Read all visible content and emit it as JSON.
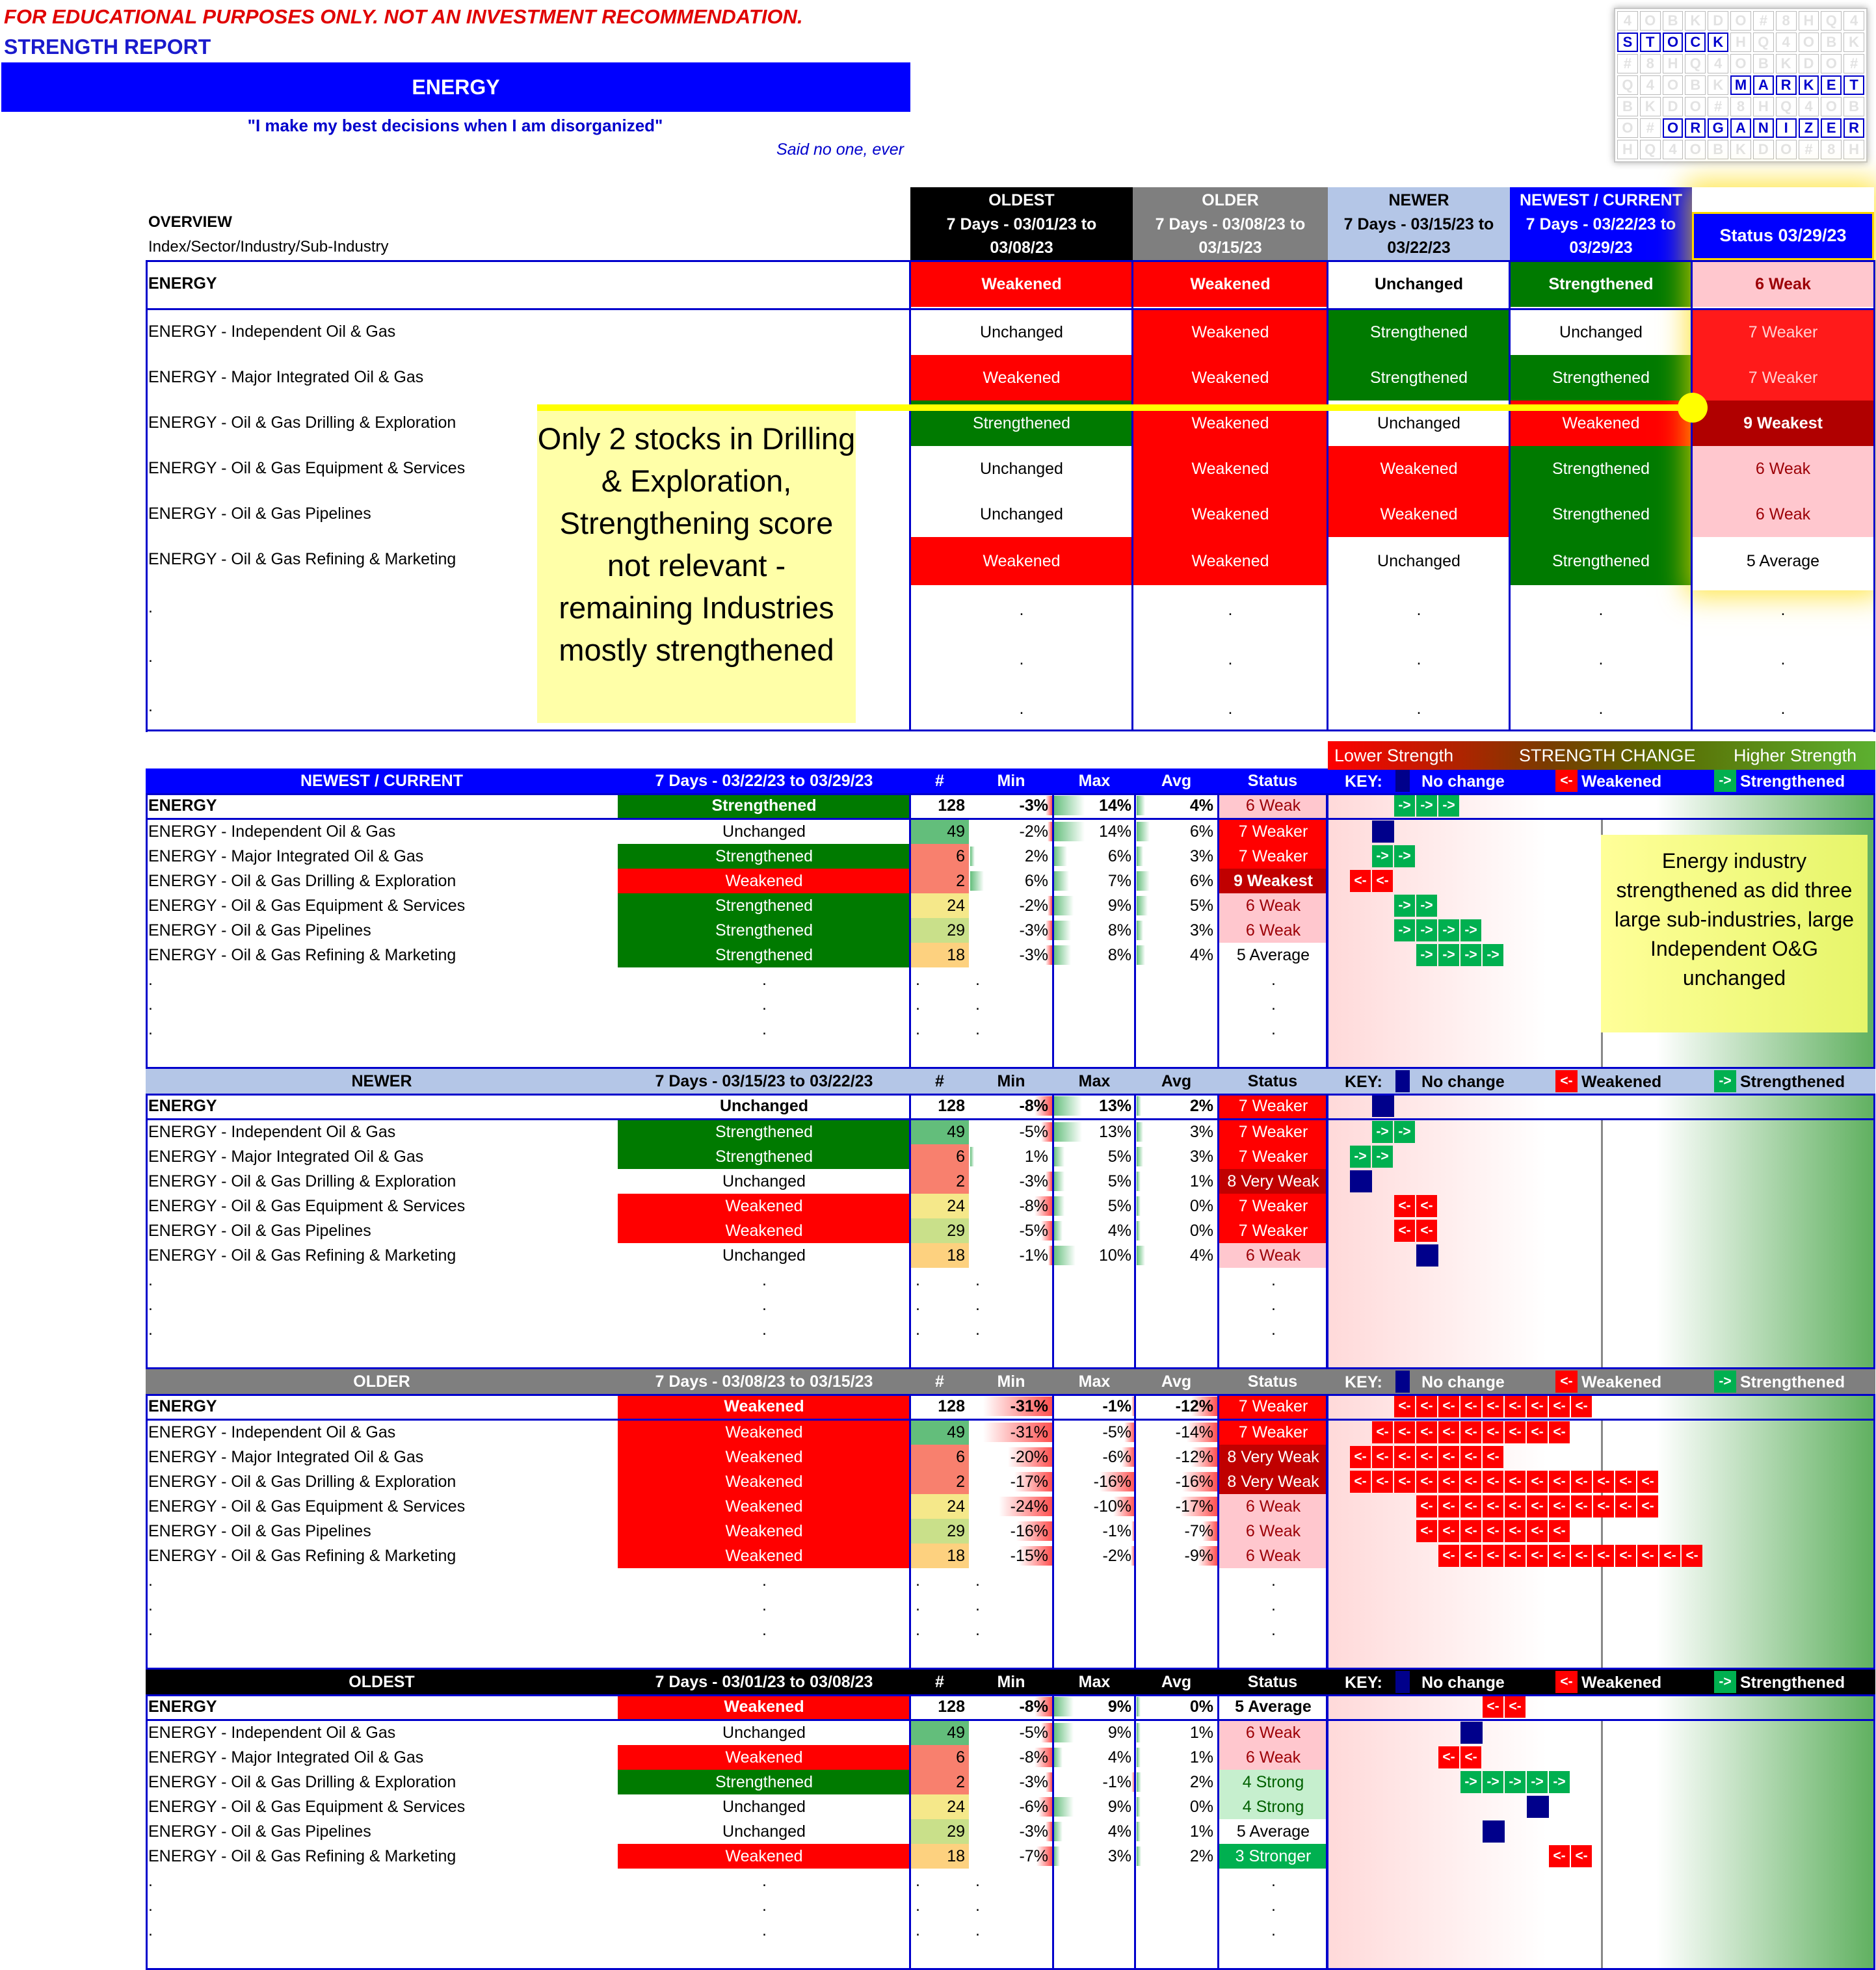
{
  "header": {
    "disclaimer": "FOR EDUCATIONAL PURPOSES ONLY. NOT AN INVESTMENT RECOMMENDATION.",
    "report": "STRENGTH REPORT",
    "sector": "ENERGY",
    "quote": "\"I make my best decisions when I am disorganized\"",
    "said": "Said no one, ever"
  },
  "logo": {
    "row1": [
      "S",
      "T",
      "O",
      "C",
      "K"
    ],
    "row2": [
      "M",
      "A",
      "R",
      "K",
      "E",
      "T"
    ],
    "row3": [
      "O",
      "R",
      "G",
      "A",
      "N",
      "I",
      "Z",
      "E",
      "R"
    ]
  },
  "overview": {
    "title": "OVERVIEW",
    "subtitle": "Index/Sector/Industry/Sub-Industry",
    "periods": [
      {
        "name": "OLDEST",
        "range": "7 Days - 03/01/23 to 03/08/23"
      },
      {
        "name": "OLDER",
        "range": "7 Days - 03/08/23 to 03/15/23"
      },
      {
        "name": "NEWER",
        "range": "7 Days - 03/15/23 to 03/22/23"
      },
      {
        "name": "NEWEST / CURRENT",
        "range": "7 Days - 03/22/23 to 03/29/23"
      }
    ],
    "status_header": "Status 03/29/23",
    "rows": [
      {
        "name": "ENERGY",
        "v": [
          "Weakened",
          "Weakened",
          "Unchanged",
          "Strengthened"
        ],
        "status": "6 Weak"
      },
      {
        "name": "ENERGY - Independent Oil & Gas",
        "v": [
          "Unchanged",
          "Weakened",
          "Strengthened",
          "Unchanged"
        ],
        "status": "7 Weaker"
      },
      {
        "name": "ENERGY - Major Integrated Oil & Gas",
        "v": [
          "Weakened",
          "Weakened",
          "Strengthened",
          "Strengthened"
        ],
        "status": "7 Weaker"
      },
      {
        "name": "ENERGY - Oil & Gas Drilling & Exploration",
        "v": [
          "Strengthened",
          "Weakened",
          "Unchanged",
          "Weakened"
        ],
        "status": "9 Weakest"
      },
      {
        "name": "ENERGY - Oil & Gas Equipment & Services",
        "v": [
          "Unchanged",
          "Weakened",
          "Weakened",
          "Strengthened"
        ],
        "status": "6 Weak"
      },
      {
        "name": "ENERGY - Oil & Gas Pipelines",
        "v": [
          "Unchanged",
          "Weakened",
          "Weakened",
          "Strengthened"
        ],
        "status": "6 Weak"
      },
      {
        "name": "ENERGY - Oil & Gas Refining & Marketing",
        "v": [
          "Weakened",
          "Weakened",
          "Unchanged",
          "Strengthened"
        ],
        "status": "5 Average"
      }
    ],
    "dot": ".",
    "note": "Only 2 stocks in Drilling & Exploration, Strengthening score not relevant - remaining Industries mostly strengthened"
  },
  "legend": {
    "lower": "Lower Strength",
    "change": "STRENGTH CHANGE",
    "higher": "Higher Strength"
  },
  "table_headers": {
    "count": "#",
    "min": "Min",
    "max": "Max",
    "avg": "Avg",
    "status": "Status",
    "key": "KEY:",
    "nochange": "No change",
    "weakened": "Weakened",
    "strengthened": "Strengthened",
    "arrow_l": "<-",
    "arrow_r": "->"
  },
  "note2": "Energy industry strengthened as did three large sub-industries, large Independent O&G unchanged",
  "tables": [
    {
      "name": "NEWEST / CURRENT",
      "range": "7 Days - 03/22/23 to 03/29/23",
      "color": "#0000ff",
      "text": "#fff",
      "rows": [
        {
          "n": "ENERGY",
          "c": "Strengthened",
          "k": 128,
          "min": "-3%",
          "max": "14%",
          "avg": "4%",
          "s": "6 Weak",
          "arrows": {
            "type": "g",
            "start": 2,
            "count": 3
          }
        },
        {
          "n": "ENERGY - Independent Oil & Gas",
          "c": "Unchanged",
          "k": 49,
          "min": "-2%",
          "max": "14%",
          "avg": "6%",
          "s": "7 Weaker",
          "arrows": {
            "type": "n",
            "start": 1,
            "count": 1
          }
        },
        {
          "n": "ENERGY - Major Integrated Oil & Gas",
          "c": "Strengthened",
          "k": 6,
          "min": "2%",
          "max": "6%",
          "avg": "3%",
          "s": "7 Weaker",
          "arrows": {
            "type": "g",
            "start": 1,
            "count": 2
          }
        },
        {
          "n": "ENERGY - Oil & Gas Drilling & Exploration",
          "c": "Weakened",
          "k": 2,
          "min": "6%",
          "max": "7%",
          "avg": "6%",
          "s": "9 Weakest",
          "arrows": {
            "type": "l",
            "start": 0,
            "count": 2
          }
        },
        {
          "n": "ENERGY - Oil & Gas Equipment & Services",
          "c": "Strengthened",
          "k": 24,
          "min": "-2%",
          "max": "9%",
          "avg": "5%",
          "s": "6 Weak",
          "arrows": {
            "type": "g",
            "start": 2,
            "count": 2
          }
        },
        {
          "n": "ENERGY - Oil & Gas Pipelines",
          "c": "Strengthened",
          "k": 29,
          "min": "-3%",
          "max": "8%",
          "avg": "3%",
          "s": "6 Weak",
          "arrows": {
            "type": "g",
            "start": 2,
            "count": 4
          }
        },
        {
          "n": "ENERGY - Oil & Gas Refining & Marketing",
          "c": "Strengthened",
          "k": 18,
          "min": "-3%",
          "max": "8%",
          "avg": "4%",
          "s": "5 Average",
          "arrows": {
            "type": "g",
            "start": 3,
            "count": 4
          }
        }
      ]
    },
    {
      "name": "NEWER",
      "range": "7 Days - 03/15/23 to 03/22/23",
      "color": "#b4c6e7",
      "text": "#000",
      "rows": [
        {
          "n": "ENERGY",
          "c": "Unchanged",
          "k": 128,
          "min": "-8%",
          "max": "13%",
          "avg": "2%",
          "s": "7 Weaker",
          "arrows": {
            "type": "n",
            "start": 1,
            "count": 1
          }
        },
        {
          "n": "ENERGY - Independent Oil & Gas",
          "c": "Strengthened",
          "k": 49,
          "min": "-5%",
          "max": "13%",
          "avg": "3%",
          "s": "7 Weaker",
          "arrows": {
            "type": "g",
            "start": 1,
            "count": 2
          }
        },
        {
          "n": "ENERGY - Major Integrated Oil & Gas",
          "c": "Strengthened",
          "k": 6,
          "min": "1%",
          "max": "5%",
          "avg": "3%",
          "s": "7 Weaker",
          "arrows": {
            "type": "g",
            "start": 0,
            "count": 2
          }
        },
        {
          "n": "ENERGY - Oil & Gas Drilling & Exploration",
          "c": "Unchanged",
          "k": 2,
          "min": "-3%",
          "max": "5%",
          "avg": "1%",
          "s": "8 Very Weak",
          "arrows": {
            "type": "n",
            "start": 0,
            "count": 1
          }
        },
        {
          "n": "ENERGY - Oil & Gas Equipment & Services",
          "c": "Weakened",
          "k": 24,
          "min": "-8%",
          "max": "5%",
          "avg": "0%",
          "s": "7 Weaker",
          "arrows": {
            "type": "l",
            "start": 2,
            "count": 2
          }
        },
        {
          "n": "ENERGY - Oil & Gas Pipelines",
          "c": "Weakened",
          "k": 29,
          "min": "-5%",
          "max": "4%",
          "avg": "0%",
          "s": "7 Weaker",
          "arrows": {
            "type": "l",
            "start": 2,
            "count": 2
          }
        },
        {
          "n": "ENERGY - Oil & Gas Refining & Marketing",
          "c": "Unchanged",
          "k": 18,
          "min": "-1%",
          "max": "10%",
          "avg": "4%",
          "s": "6 Weak",
          "arrows": {
            "type": "n",
            "start": 3,
            "count": 1
          }
        }
      ]
    },
    {
      "name": "OLDER",
      "range": "7 Days - 03/08/23 to 03/15/23",
      "color": "#7f7f7f",
      "text": "#fff",
      "rows": [
        {
          "n": "ENERGY",
          "c": "Weakened",
          "k": 128,
          "min": "-31%",
          "max": "-1%",
          "avg": "-12%",
          "s": "7 Weaker",
          "arrows": {
            "type": "l",
            "start": 2,
            "count": 9
          }
        },
        {
          "n": "ENERGY - Independent Oil & Gas",
          "c": "Weakened",
          "k": 49,
          "min": "-31%",
          "max": "-5%",
          "avg": "-14%",
          "s": "7 Weaker",
          "arrows": {
            "type": "l",
            "start": 1,
            "count": 9
          }
        },
        {
          "n": "ENERGY - Major Integrated Oil & Gas",
          "c": "Weakened",
          "k": 6,
          "min": "-20%",
          "max": "-6%",
          "avg": "-12%",
          "s": "8 Very Weak",
          "arrows": {
            "type": "l",
            "start": 0,
            "count": 7
          }
        },
        {
          "n": "ENERGY - Oil & Gas Drilling & Exploration",
          "c": "Weakened",
          "k": 2,
          "min": "-17%",
          "max": "-16%",
          "avg": "-16%",
          "s": "8 Very Weak",
          "arrows": {
            "type": "l",
            "start": 0,
            "count": 14
          }
        },
        {
          "n": "ENERGY - Oil & Gas Equipment & Services",
          "c": "Weakened",
          "k": 24,
          "min": "-24%",
          "max": "-10%",
          "avg": "-17%",
          "s": "6 Weak",
          "arrows": {
            "type": "l",
            "start": 3,
            "count": 11
          }
        },
        {
          "n": "ENERGY - Oil & Gas Pipelines",
          "c": "Weakened",
          "k": 29,
          "min": "-16%",
          "max": "-1%",
          "avg": "-7%",
          "s": "6 Weak",
          "arrows": {
            "type": "l",
            "start": 3,
            "count": 7
          }
        },
        {
          "n": "ENERGY - Oil & Gas Refining & Marketing",
          "c": "Weakened",
          "k": 18,
          "min": "-15%",
          "max": "-2%",
          "avg": "-9%",
          "s": "6 Weak",
          "arrows": {
            "type": "l",
            "start": 4,
            "count": 12
          }
        }
      ]
    },
    {
      "name": "OLDEST",
      "range": "7 Days - 03/01/23 to 03/08/23",
      "color": "#000000",
      "text": "#fff",
      "rows": [
        {
          "n": "ENERGY",
          "c": "Weakened",
          "k": 128,
          "min": "-8%",
          "max": "9%",
          "avg": "0%",
          "s": "5 Average",
          "arrows": {
            "type": "l",
            "start": 6,
            "count": 2
          }
        },
        {
          "n": "ENERGY - Independent Oil & Gas",
          "c": "Unchanged",
          "k": 49,
          "min": "-5%",
          "max": "9%",
          "avg": "1%",
          "s": "6 Weak",
          "arrows": {
            "type": "n",
            "start": 5,
            "count": 1
          }
        },
        {
          "n": "ENERGY - Major Integrated Oil & Gas",
          "c": "Weakened",
          "k": 6,
          "min": "-8%",
          "max": "4%",
          "avg": "1%",
          "s": "6 Weak",
          "arrows": {
            "type": "l",
            "start": 4,
            "count": 2
          }
        },
        {
          "n": "ENERGY - Oil & Gas Drilling & Exploration",
          "c": "Strengthened",
          "k": 2,
          "min": "-3%",
          "max": "-1%",
          "avg": "2%",
          "s": "4 Strong",
          "arrows": {
            "type": "g",
            "start": 5,
            "count": 5
          }
        },
        {
          "n": "ENERGY - Oil & Gas Equipment & Services",
          "c": "Unchanged",
          "k": 24,
          "min": "-6%",
          "max": "9%",
          "avg": "0%",
          "s": "4 Strong",
          "arrows": {
            "type": "n",
            "start": 8,
            "count": 1
          }
        },
        {
          "n": "ENERGY - Oil & Gas Pipelines",
          "c": "Unchanged",
          "k": 29,
          "min": "-3%",
          "max": "4%",
          "avg": "1%",
          "s": "5 Average",
          "arrows": {
            "type": "n",
            "start": 6,
            "count": 1
          }
        },
        {
          "n": "ENERGY - Oil & Gas Refining & Marketing",
          "c": "Weakened",
          "k": 18,
          "min": "-7%",
          "max": "3%",
          "avg": "2%",
          "s": "3 Stronger",
          "arrows": {
            "type": "l",
            "start": 9,
            "count": 2
          }
        }
      ]
    }
  ],
  "colors": {
    "red": "#ff0000",
    "green": "#007a00",
    "blue": "#0000ff",
    "yellow": "#ffff00"
  }
}
